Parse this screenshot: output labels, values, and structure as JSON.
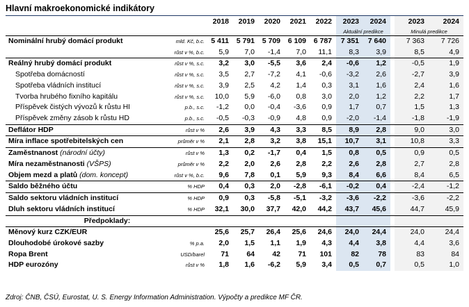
{
  "title": "Hlavní makroekonomické indikátory",
  "years": [
    "2018",
    "2019",
    "2020",
    "2021",
    "2022",
    "2023",
    "2024"
  ],
  "prev_years": [
    "2023",
    "2024"
  ],
  "forecast_caption": "Aktuální predikce",
  "prev_caption": "Minulá predikce",
  "source": "Zdroj: ČNB, ČSÚ, Eurostat, U. S. Energy Information Administration. Výpočty a predikce MF ČR.",
  "colors": {
    "forecast_bg": "#dce6f1",
    "previous_bg": "#f2f2f2",
    "title_rule": "#1f3864"
  },
  "rows": [
    {
      "label": "Nominální hrubý domácí produkt",
      "unit": "mld. Kč, b.c.",
      "values": [
        "5 411",
        "5 791",
        "5 709",
        "6 109",
        "6 787",
        "7 351",
        "7 640"
      ],
      "prev": [
        "7 363",
        "7 726"
      ],
      "bold": true
    },
    {
      "label": "",
      "unit": "růst v %, b.c.",
      "values": [
        "5,9",
        "7,0",
        "-1,4",
        "7,0",
        "11,1",
        "8,3",
        "3,9"
      ],
      "prev": [
        "8,5",
        "4,9"
      ],
      "bold": false
    },
    {
      "label": "Reálný hrubý domácí produkt",
      "unit": "růst v %, s.c.",
      "values": [
        "3,2",
        "3,0",
        "-5,5",
        "3,6",
        "2,4",
        "-0,6",
        "1,2"
      ],
      "prev": [
        "-0,5",
        "1,9"
      ],
      "bold": true
    },
    {
      "label": "Spotřeba domácností",
      "unit": "růst v %, s.c.",
      "values": [
        "3,5",
        "2,7",
        "-7,2",
        "4,1",
        "-0,6",
        "-3,2",
        "2,6"
      ],
      "prev": [
        "-2,7",
        "3,9"
      ],
      "bold": false,
      "indent": true
    },
    {
      "label": "Spotřeba vládních institucí",
      "unit": "růst v %, s.c.",
      "values": [
        "3,9",
        "2,5",
        "4,2",
        "1,4",
        "0,3",
        "3,1",
        "1,6"
      ],
      "prev": [
        "2,4",
        "1,6"
      ],
      "bold": false,
      "indent": true
    },
    {
      "label": "Tvorba hrubého fixního kapitálu",
      "unit": "růst v %, s.c.",
      "values": [
        "10,0",
        "5,9",
        "-6,0",
        "0,8",
        "3,0",
        "2,0",
        "1,2"
      ],
      "prev": [
        "2,2",
        "1,7"
      ],
      "bold": false,
      "indent": true
    },
    {
      "label": "Příspěvek čistých vývozů k růstu HDP",
      "unit": "p.b., s.c.",
      "values": [
        "-1,2",
        "0,0",
        "-0,4",
        "-3,6",
        "0,9",
        "1,7",
        "0,7"
      ],
      "prev": [
        "1,5",
        "1,3"
      ],
      "bold": false,
      "indent": true
    },
    {
      "label": "Příspěvek změny zásob k růstu HDP",
      "unit": "p.b., s.c.",
      "values": [
        "-0,5",
        "-0,3",
        "-0,9",
        "4,8",
        "0,9",
        "-2,0",
        "-1,4"
      ],
      "prev": [
        "-1,8",
        "-1,9"
      ],
      "bold": false,
      "indent": true
    },
    {
      "label": "Deflátor HDP",
      "unit": "růst v %",
      "values": [
        "2,6",
        "3,9",
        "4,3",
        "3,3",
        "8,5",
        "8,9",
        "2,8"
      ],
      "prev": [
        "9,0",
        "3,0"
      ],
      "bold": true
    },
    {
      "label": "Míra inflace spotřebitelských cen",
      "unit": "průměr v %",
      "values": [
        "2,1",
        "2,8",
        "3,2",
        "3,8",
        "15,1",
        "10,7",
        "3,1"
      ],
      "prev": [
        "10,8",
        "3,3"
      ],
      "bold": true
    },
    {
      "label": "Zaměstnanost",
      "label_note": "(národní účty)",
      "unit": "růst v %",
      "values": [
        "1,3",
        "0,2",
        "-1,7",
        "0,4",
        "1,5",
        "0,8",
        "0,5"
      ],
      "prev": [
        "0,9",
        "0,5"
      ],
      "bold": true
    },
    {
      "label": "Míra nezaměstnanosti",
      "label_note": "(VŠPS)",
      "unit": "průměr v %",
      "values": [
        "2,2",
        "2,0",
        "2,6",
        "2,8",
        "2,2",
        "2,6",
        "2,8"
      ],
      "prev": [
        "2,7",
        "2,8"
      ],
      "bold": true
    },
    {
      "label": "Objem mezd a platů",
      "label_note": "(dom. koncept)",
      "unit": "růst v %, b.c.",
      "values": [
        "9,6",
        "7,8",
        "0,1",
        "5,9",
        "9,3",
        "8,4",
        "6,6"
      ],
      "prev": [
        "8,4",
        "6,5"
      ],
      "bold": true
    },
    {
      "label": "Saldo běžného účtu",
      "unit": "% HDP",
      "values": [
        "0,4",
        "0,3",
        "2,0",
        "-2,8",
        "-6,1",
        "-0,2",
        "0,4"
      ],
      "prev": [
        "-2,4",
        "-1,2"
      ],
      "bold": true
    },
    {
      "label": "Saldo sektoru vládních institucí",
      "unit": "% HDP",
      "values": [
        "0,9",
        "0,3",
        "-5,8",
        "-5,1",
        "-3,2",
        "-3,6",
        "-2,2"
      ],
      "prev": [
        "-3,6",
        "-2,2"
      ],
      "bold": true
    },
    {
      "label": "Dluh sektoru vládních institucí",
      "unit": "% HDP",
      "values": [
        "32,1",
        "30,0",
        "37,7",
        "42,0",
        "44,2",
        "43,7",
        "45,6"
      ],
      "prev": [
        "44,7",
        "45,9"
      ],
      "bold": true
    },
    {
      "label": "Předpoklady:",
      "unit": "",
      "values": [
        "",
        "",
        "",
        "",
        "",
        "",
        ""
      ],
      "prev": [
        "",
        ""
      ],
      "bold": true,
      "section": true
    },
    {
      "label": "Měnový kurz CZK/EUR",
      "unit": "",
      "values": [
        "25,6",
        "25,7",
        "26,4",
        "25,6",
        "24,6",
        "24,0",
        "24,4"
      ],
      "prev": [
        "24,0",
        "24,4"
      ],
      "bold": true
    },
    {
      "label": "Dlouhodobé úrokové sazby",
      "unit": "% p.a.",
      "values": [
        "2,0",
        "1,5",
        "1,1",
        "1,9",
        "4,3",
        "4,4",
        "3,8"
      ],
      "prev": [
        "4,4",
        "3,6"
      ],
      "bold": true
    },
    {
      "label": "Ropa Brent",
      "unit": "USD/barel",
      "values": [
        "71",
        "64",
        "42",
        "71",
        "101",
        "82",
        "78"
      ],
      "prev": [
        "83",
        "84"
      ],
      "bold": true
    },
    {
      "label": "HDP eurozóny",
      "unit": "růst v %",
      "values": [
        "1,8",
        "1,6",
        "-6,2",
        "5,9",
        "3,4",
        "0,5",
        "0,7"
      ],
      "prev": [
        "0,5",
        "1,0"
      ],
      "bold": true
    }
  ]
}
